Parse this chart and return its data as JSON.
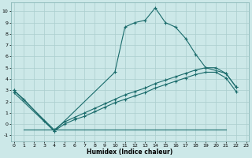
{
  "background_color": "#cce8e8",
  "grid_color": "#aacece",
  "line_color": "#1a6b6b",
  "marker_style": "+",
  "main_curve_x": [
    0,
    1,
    3,
    4,
    10,
    11,
    12,
    13,
    14,
    15,
    16,
    17,
    18,
    19,
    21,
    22
  ],
  "main_curve_y": [
    3.0,
    2.2,
    0.3,
    -0.6,
    4.6,
    8.6,
    9.0,
    9.2,
    10.3,
    9.0,
    8.6,
    7.6,
    6.2,
    5.0,
    4.5,
    3.3
  ],
  "diag_upper_x": [
    0,
    4,
    5,
    6,
    7,
    8,
    9,
    10,
    11,
    12,
    13,
    14,
    15,
    16,
    17,
    18,
    19,
    20,
    21,
    22
  ],
  "diag_upper_y": [
    3.0,
    -0.5,
    0.2,
    0.6,
    1.0,
    1.4,
    1.8,
    2.2,
    2.6,
    2.9,
    3.2,
    3.6,
    3.9,
    4.2,
    4.5,
    4.8,
    5.0,
    5.0,
    4.5,
    3.3
  ],
  "diag_lower_x": [
    0,
    4,
    5,
    6,
    7,
    8,
    9,
    10,
    11,
    12,
    13,
    14,
    15,
    16,
    17,
    18,
    19,
    20,
    21,
    22
  ],
  "diag_lower_y": [
    2.8,
    -0.6,
    0.0,
    0.4,
    0.7,
    1.1,
    1.5,
    1.9,
    2.2,
    2.5,
    2.8,
    3.2,
    3.5,
    3.8,
    4.1,
    4.4,
    4.6,
    4.6,
    4.1,
    2.9
  ],
  "flat_line_x": [
    1,
    2,
    3,
    4,
    5,
    6,
    7,
    8,
    9,
    10,
    11,
    12,
    13,
    14,
    15,
    16,
    17,
    18,
    19,
    20,
    21
  ],
  "flat_line_y": [
    -0.5,
    -0.5,
    -0.5,
    -0.5,
    -0.5,
    -0.5,
    -0.5,
    -0.5,
    -0.5,
    -0.5,
    -0.5,
    -0.5,
    -0.5,
    -0.5,
    -0.5,
    -0.5,
    -0.5,
    -0.5,
    -0.5,
    -0.5,
    -0.5
  ],
  "xlim": [
    -0.3,
    23.3
  ],
  "ylim": [
    -1.5,
    10.8
  ],
  "yticks": [
    -1,
    0,
    1,
    2,
    3,
    4,
    5,
    6,
    7,
    8,
    9,
    10
  ],
  "xticks": [
    0,
    1,
    2,
    3,
    4,
    5,
    6,
    7,
    8,
    9,
    10,
    11,
    12,
    13,
    14,
    15,
    16,
    17,
    18,
    19,
    20,
    21,
    22,
    23
  ],
  "xlabel": "Humidex (Indice chaleur)"
}
